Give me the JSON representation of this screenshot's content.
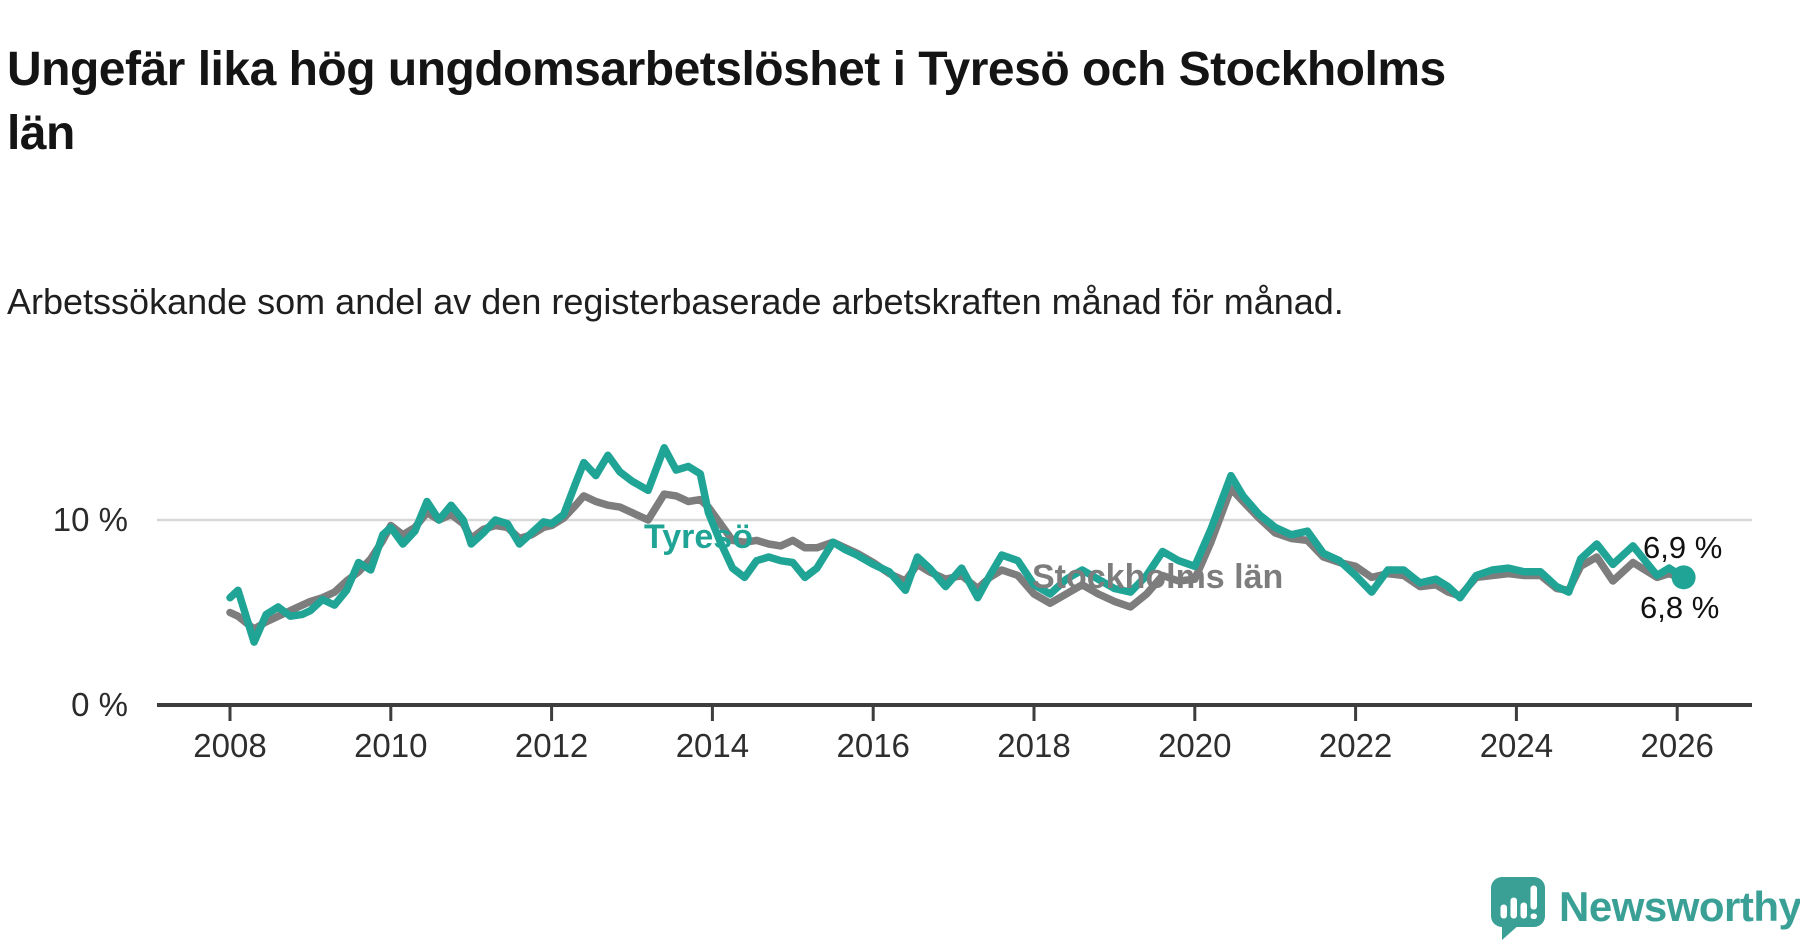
{
  "header": {
    "title": "Ungefär lika hög ungdomsarbetslöshet i Tyresö och Stockholms län",
    "subtitle": "Arbetssökande som andel av den registerbaserade arbetskraften månad för månad."
  },
  "chart_data": {
    "type": "line",
    "unit": "%",
    "title": "Ungefär lika hög ungdomsarbetslöshet i Tyresö och Stockholms län",
    "xlabel": "",
    "ylabel": "",
    "legend_position": "inline-labels",
    "grid": "single-horizontal-gridline-at-10",
    "y_axis": {
      "labels": {
        "top": "10 %",
        "zero": "0 %"
      },
      "gridline_value": 10,
      "axis_value": 0
    },
    "x_ticks": [
      2008,
      2010,
      2012,
      2014,
      2016,
      2018,
      2020,
      2022,
      2024,
      2026
    ],
    "xlim": [
      2008.0,
      2026.08
    ],
    "x": [
      2008.0,
      2008.1,
      2008.3,
      2008.45,
      2008.6,
      2008.75,
      2008.9,
      2009.0,
      2009.15,
      2009.3,
      2009.45,
      2009.6,
      2009.75,
      2009.9,
      2010.0,
      2010.15,
      2010.3,
      2010.45,
      2010.6,
      2010.75,
      2010.9,
      2011.0,
      2011.15,
      2011.3,
      2011.45,
      2011.6,
      2011.75,
      2011.9,
      2012.0,
      2012.15,
      2012.3,
      2012.4,
      2012.55,
      2012.7,
      2012.85,
      2013.0,
      2013.2,
      2013.4,
      2013.55,
      2013.7,
      2013.85,
      2013.95,
      2014.1,
      2014.25,
      2014.4,
      2014.55,
      2014.7,
      2014.85,
      2015.0,
      2015.15,
      2015.3,
      2015.5,
      2015.65,
      2015.8,
      2016.0,
      2016.2,
      2016.4,
      2016.55,
      2016.7,
      2016.9,
      2017.1,
      2017.3,
      2017.45,
      2017.6,
      2017.8,
      2018.0,
      2018.2,
      2018.4,
      2018.6,
      2018.8,
      2019.0,
      2019.2,
      2019.4,
      2019.6,
      2019.8,
      2020.0,
      2020.2,
      2020.45,
      2020.6,
      2020.8,
      2021.0,
      2021.2,
      2021.4,
      2021.6,
      2021.8,
      2022.0,
      2022.2,
      2022.4,
      2022.6,
      2022.8,
      2023.0,
      2023.15,
      2023.3,
      2023.5,
      2023.7,
      2023.9,
      2024.1,
      2024.3,
      2024.5,
      2024.65,
      2024.8,
      2025.0,
      2025.2,
      2025.45,
      2025.6,
      2025.75,
      2025.9,
      2026.08
    ],
    "series": [
      {
        "name": "Stockholms län",
        "color": "#7d7d7d",
        "end_label": "6,8 %",
        "end_dot": false,
        "values": [
          5.0,
          4.8,
          4.1,
          4.5,
          4.8,
          5.1,
          5.4,
          5.6,
          5.8,
          6.1,
          6.7,
          7.2,
          7.9,
          8.9,
          9.7,
          9.2,
          9.6,
          10.4,
          10.0,
          10.3,
          9.8,
          9.0,
          9.5,
          9.7,
          9.6,
          9.0,
          9.2,
          9.6,
          9.7,
          10.1,
          10.8,
          11.3,
          11.0,
          10.8,
          10.7,
          10.4,
          10.0,
          11.4,
          11.3,
          11.0,
          11.1,
          10.7,
          9.8,
          8.9,
          8.8,
          8.9,
          8.7,
          8.6,
          8.9,
          8.5,
          8.5,
          8.8,
          8.5,
          8.2,
          7.7,
          7.1,
          6.7,
          7.6,
          7.2,
          6.8,
          7.0,
          6.3,
          6.9,
          7.3,
          7.0,
          6.0,
          5.5,
          6.0,
          6.5,
          6.0,
          5.6,
          5.3,
          6.0,
          7.0,
          6.7,
          6.8,
          8.8,
          11.7,
          11.0,
          10.1,
          9.3,
          9.0,
          8.9,
          8.0,
          7.7,
          7.5,
          6.9,
          7.1,
          7.0,
          6.4,
          6.5,
          6.1,
          5.9,
          6.9,
          7.0,
          7.1,
          7.0,
          7.0,
          6.3,
          6.2,
          7.5,
          8.0,
          6.7,
          7.7,
          7.3,
          6.9,
          7.1,
          6.8
        ]
      },
      {
        "name": "Tyresö",
        "color": "#20a496",
        "end_label": "6,9 %",
        "end_dot": true,
        "values": [
          5.8,
          6.2,
          3.4,
          4.9,
          5.3,
          4.8,
          4.9,
          5.1,
          5.7,
          5.4,
          6.2,
          7.7,
          7.3,
          9.2,
          9.6,
          8.7,
          9.4,
          11.0,
          10.0,
          10.8,
          10.0,
          8.7,
          9.3,
          10.0,
          9.8,
          8.7,
          9.3,
          9.9,
          9.8,
          10.3,
          12.0,
          13.1,
          12.4,
          13.5,
          12.6,
          12.1,
          11.6,
          13.9,
          12.7,
          12.9,
          12.5,
          10.4,
          8.8,
          7.4,
          6.9,
          7.8,
          8.0,
          7.8,
          7.7,
          6.9,
          7.4,
          8.8,
          8.4,
          8.1,
          7.6,
          7.2,
          6.2,
          8.0,
          7.4,
          6.4,
          7.4,
          5.8,
          7.0,
          8.1,
          7.8,
          6.5,
          6.0,
          6.8,
          7.3,
          6.8,
          6.3,
          6.1,
          7.0,
          8.3,
          7.8,
          7.5,
          9.5,
          12.4,
          11.3,
          10.3,
          9.6,
          9.2,
          9.4,
          8.2,
          7.8,
          7.0,
          6.1,
          7.3,
          7.3,
          6.6,
          6.8,
          6.4,
          5.8,
          7.0,
          7.3,
          7.4,
          7.2,
          7.2,
          6.4,
          6.1,
          7.9,
          8.7,
          7.6,
          8.6,
          7.8,
          7.0,
          7.4,
          6.9
        ]
      }
    ],
    "colors": {
      "gridline": "#d8d8d8",
      "axis": "#3d3d3d",
      "tick_text": "#2e2e2e",
      "end_label_text": "#111111"
    }
  },
  "footer": {
    "brand": "Newsworthy",
    "brand_color": "#3aa096",
    "logo_icon": "bar-chart-speech-bubble-icon"
  }
}
